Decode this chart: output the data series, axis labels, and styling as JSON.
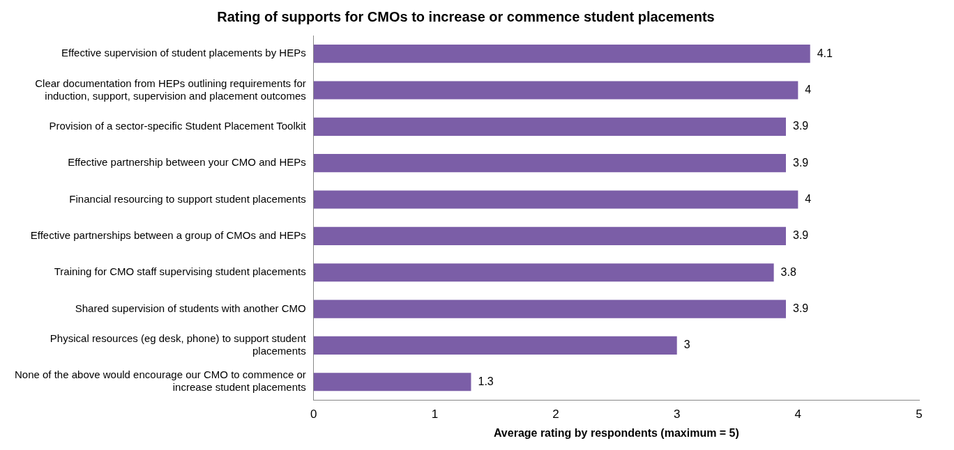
{
  "chart_data": {
    "type": "bar",
    "orientation": "horizontal",
    "title": "Rating of supports for CMOs to increase or commence student placements",
    "xlabel": "Average rating by respondents (maximum = 5)",
    "categories": [
      "Effective supervision of student placements by HEPs",
      "Clear documentation from HEPs outlining requirements for induction, support, supervision and placement outcomes",
      "Provision of a sector-specific Student Placement Toolkit",
      "Effective partnership between your CMO and HEPs",
      "Financial resourcing to support student placements",
      "Effective partnerships between a group of CMOs and HEPs",
      "Training for CMO staff supervising student placements",
      "Shared supervision of students with another CMO",
      "Physical resources (eg desk, phone) to support student placements",
      "None of the above would encourage our CMO to commence or increase student placements"
    ],
    "values": [
      4.1,
      4,
      3.9,
      3.9,
      4,
      3.9,
      3.8,
      3.9,
      3,
      1.3
    ],
    "color": "#7b5ea7",
    "xlim": [
      0,
      5
    ],
    "xticks": [
      0,
      1,
      2,
      3,
      4,
      5
    ],
    "grid": false,
    "legend": false,
    "data_labels": true
  }
}
